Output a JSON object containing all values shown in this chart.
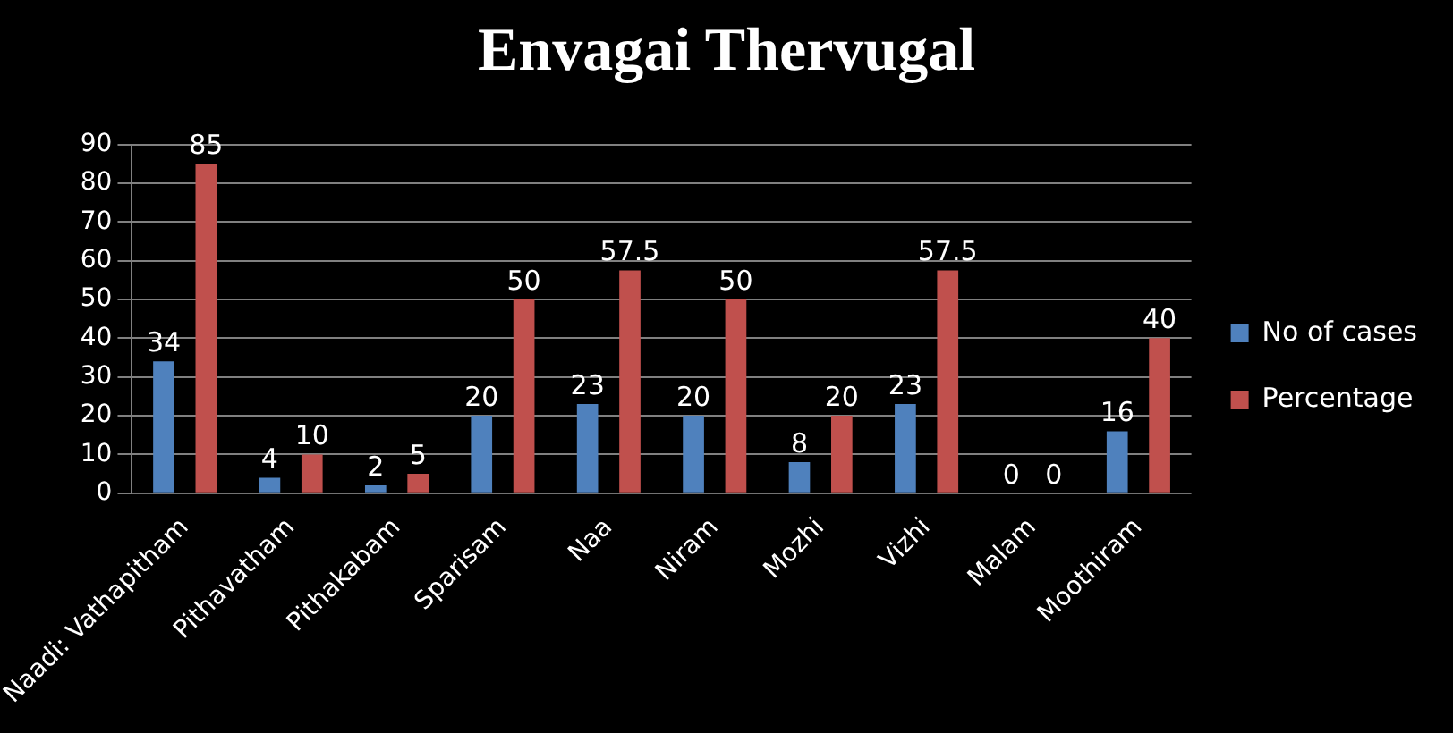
{
  "chart_data": {
    "type": "bar",
    "title": "Envagai Thervugal",
    "categories": [
      "Naadi: Vathapitham",
      "Pithavatham",
      "Pithakabam",
      "Sparisam",
      "Naa",
      "Niram",
      "Mozhi",
      "Vizhi",
      "Malam",
      "Moothiram"
    ],
    "series": [
      {
        "name": "No of cases",
        "color": "#4f81bd",
        "values": [
          34,
          4,
          2,
          20,
          23,
          20,
          8,
          23,
          0,
          16
        ]
      },
      {
        "name": "Percentage",
        "color": "#c0504d",
        "values": [
          85,
          10,
          5,
          50,
          57.5,
          50,
          20,
          57.5,
          0,
          40
        ]
      }
    ],
    "ylim": [
      0,
      90
    ],
    "yticks": [
      0,
      10,
      20,
      30,
      40,
      50,
      60,
      70,
      80,
      90
    ],
    "grid": "y",
    "legend": "right",
    "data_labels": true
  }
}
